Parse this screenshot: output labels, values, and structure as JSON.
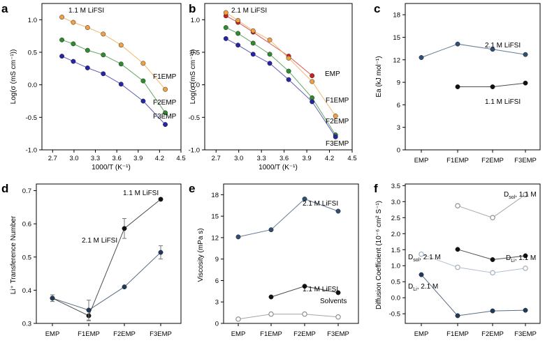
{
  "chart_data": [
    {
      "panel": "a",
      "type": "line",
      "title": "1.1 M LiFSI",
      "xlabel": "1000/T (K⁻¹)",
      "ylabel": "Log(σ (mS cm⁻¹))",
      "xlim": [
        2.55,
        4.5
      ],
      "ylim": [
        -1.0,
        1.25
      ],
      "xticks": [
        "2.7",
        "3.0",
        "3.3",
        "3.6",
        "3.9",
        "4.2",
        "4.5"
      ],
      "yticks": [
        "-1.0",
        "-0.5",
        "0.0",
        "0.5",
        "1.0"
      ],
      "x": [
        2.83,
        2.99,
        3.19,
        3.41,
        3.66,
        3.97,
        4.28
      ],
      "series": [
        {
          "name": "F1EMP",
          "label": "F1EMP",
          "color": "#f0a040",
          "values": [
            1.04,
            0.96,
            0.88,
            0.78,
            0.61,
            0.33,
            -0.07
          ]
        },
        {
          "name": "F2EMP",
          "label": "F2EMP",
          "color": "#2e8b2e",
          "values": [
            0.69,
            0.63,
            0.53,
            0.46,
            0.32,
            0.06,
            -0.43
          ]
        },
        {
          "name": "F3EMP",
          "label": "F3EMP",
          "color": "#2525a5",
          "values": [
            0.44,
            0.36,
            0.26,
            0.17,
            0.01,
            -0.25,
            -0.61
          ]
        }
      ]
    },
    {
      "panel": "b",
      "type": "line",
      "title": "2.1 M LiFSI",
      "xlabel": "1000/T (K⁻¹)",
      "ylabel": "Log(σ (mS cm⁻¹))",
      "xlim": [
        2.55,
        4.5
      ],
      "ylim": [
        -1.0,
        1.25
      ],
      "xticks": [
        "2.7",
        "3.0",
        "3.3",
        "3.6",
        "3.9",
        "4.2",
        "4.5"
      ],
      "yticks": [
        "-1.0",
        "-0.5",
        "0.0",
        "0.5",
        "1.0"
      ],
      "x": [
        2.83,
        2.99,
        3.19,
        3.41,
        3.66,
        3.97,
        4.28
      ],
      "series": [
        {
          "name": "EMP",
          "label": "EMP",
          "color": "#cc2020",
          "values": [
            1.06,
            0.96,
            0.81,
            null,
            0.44,
            0.14,
            null
          ]
        },
        {
          "name": "F1EMP",
          "label": "F1EMP",
          "color": "#f0a040",
          "values": [
            1.11,
            0.99,
            0.83,
            0.69,
            0.41,
            0.05,
            -0.48
          ]
        },
        {
          "name": "F2EMP",
          "label": "F2EMP",
          "color": "#2e8b2e",
          "values": [
            0.88,
            0.79,
            0.64,
            0.47,
            0.21,
            -0.2,
            -0.77
          ]
        },
        {
          "name": "F3EMP",
          "label": "F3EMP",
          "color": "#2525a5",
          "values": [
            0.71,
            0.61,
            0.47,
            0.33,
            0.08,
            -0.26,
            -0.8
          ]
        }
      ]
    },
    {
      "panel": "c",
      "type": "line",
      "title": "",
      "xlabel": "",
      "ylabel": "Ea (kJ mol⁻¹)",
      "categories": [
        "EMP",
        "F1EMP",
        "F2EMP",
        "F3EMP"
      ],
      "ylim": [
        0,
        19.5
      ],
      "yticks": [
        "0",
        "3",
        "6",
        "9",
        "12",
        "15",
        "18"
      ],
      "series": [
        {
          "name": "2.1 M LiFSI",
          "label": "2.1 M LiFSI",
          "color": "#2f4e72",
          "values": [
            12.3,
            14.1,
            13.4,
            12.7
          ]
        },
        {
          "name": "1.1 M LiFSI",
          "label": "1.1 M LiFSI",
          "color": "#111111",
          "values": [
            null,
            8.4,
            8.4,
            8.9
          ]
        }
      ]
    },
    {
      "panel": "d",
      "type": "line",
      "title": "",
      "xlabel": "",
      "ylabel": "Li⁺ Transference Number",
      "categories": [
        "EMP",
        "F1EMP",
        "F2EMP",
        "F3EMP"
      ],
      "ylim": [
        0.3,
        0.72
      ],
      "yticks": [
        "0.3",
        "0.4",
        "0.5",
        "0.6",
        "0.7"
      ],
      "series": [
        {
          "name": "1.1 M LiFSI",
          "label": "1.1 M LiFSI",
          "color": "#111111",
          "values": [
            0.376,
            0.323,
            0.586,
            0.674
          ],
          "errors": [
            0.01,
            0.015,
            0.03,
            0.004
          ]
        },
        {
          "name": "2.1 M LiFSI",
          "label": "2.1 M LiFSI",
          "color": "#1f3a5c",
          "values": [
            0.376,
            0.34,
            0.41,
            0.514
          ],
          "errors": [
            0.01,
            0.03,
            0.0,
            0.02
          ]
        }
      ]
    },
    {
      "panel": "e",
      "type": "line",
      "title": "",
      "xlabel": "",
      "ylabel": "Viscosity (mPa s)",
      "categories": [
        "EMP",
        "F1EMP",
        "F2EMP",
        "F3EMP"
      ],
      "ylim": [
        0,
        19.5
      ],
      "yticks": [
        "0",
        "3",
        "6",
        "9",
        "12",
        "15",
        "18"
      ],
      "series": [
        {
          "name": "2.1 M LiFSI",
          "label": "2.1 M LiFSI",
          "color": "#2f4e72",
          "values": [
            12.1,
            13.1,
            17.4,
            15.7
          ]
        },
        {
          "name": "1.1 M LiFSI",
          "label": "1.1 M LiFSI",
          "color": "#111111",
          "values": [
            null,
            3.7,
            5.2,
            4.3
          ]
        },
        {
          "name": "Solvents",
          "label": "Solvents",
          "color": "#888888",
          "open": true,
          "values": [
            0.6,
            1.3,
            1.3,
            0.9
          ]
        }
      ]
    },
    {
      "panel": "f",
      "type": "line",
      "title": "",
      "xlabel": "",
      "ylabel": "Diffusion Coefficient (10⁻⁶ cm² S⁻¹)",
      "categories": [
        "EMP",
        "F1EMP",
        "F2EMP",
        "F3EMP"
      ],
      "ylim": [
        -0.8,
        3.55
      ],
      "yticks": [
        "-0.5",
        "0.0",
        "0.5",
        "1.0",
        "1.5",
        "2.0",
        "2.5",
        "3.0",
        "3.5"
      ],
      "series": [
        {
          "name": "Dsol 1.1 M",
          "label": "D",
          "sub": "sol",
          "suffix": ", 1.1 M",
          "color": "#888888",
          "open": true,
          "values": [
            null,
            2.87,
            2.5,
            3.22
          ]
        },
        {
          "name": "DLi 1.1 M",
          "label": "D",
          "sub": "Li",
          "suffix": ", 1.1 M",
          "color": "#111111",
          "values": [
            null,
            1.51,
            1.19,
            1.31
          ]
        },
        {
          "name": "Dsol 2.1 M",
          "label": "D",
          "sub": "sol",
          "suffix": ", 2.1 M",
          "color": "#99aabb",
          "open": true,
          "values": [
            1.36,
            0.95,
            0.78,
            0.92
          ]
        },
        {
          "name": "DLi 2.1 M",
          "label": "D",
          "sub": "Li",
          "suffix": ", 2.1 M",
          "color": "#1f3a5c",
          "values": [
            0.72,
            -0.56,
            -0.41,
            -0.39
          ]
        }
      ]
    }
  ]
}
